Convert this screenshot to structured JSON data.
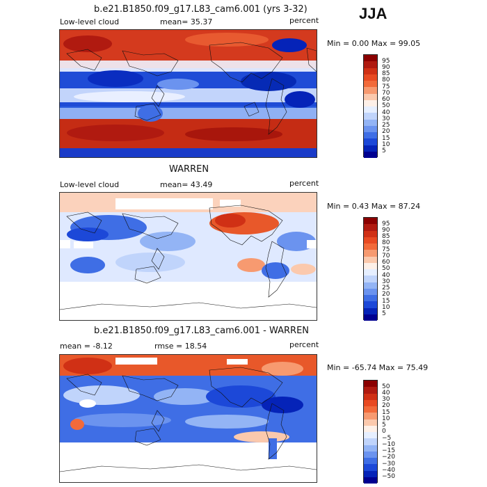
{
  "season": "JJA",
  "panels": [
    {
      "title": "b.e21.B1850.f09_g17.L83_cam6.001 (yrs 3-32)",
      "left_label": "Low-level cloud",
      "mid_label": "mean=  35.37",
      "right_label": "percent",
      "minmax": "Min =   0.00 Max =  99.05",
      "colorbar_ticks": [
        "95",
        "90",
        "85",
        "80",
        "75",
        "70",
        "60",
        "50",
        "40",
        "30",
        "25",
        "20",
        "15",
        "10",
        "5"
      ],
      "colorbar_colors": [
        "#8b0000",
        "#b01a10",
        "#d03015",
        "#e84a22",
        "#f26a3a",
        "#f79a70",
        "#fbc9ad",
        "#fdf0e8",
        "#e6efff",
        "#c0d4fb",
        "#93b4f5",
        "#6b93ef",
        "#3f6ee5",
        "#1c48d8",
        "#0523b8",
        "#000090"
      ]
    },
    {
      "title": "WARREN",
      "left_label": "Low-level cloud",
      "mid_label": "mean=  43.49",
      "right_label": "percent",
      "minmax": "Min =   0.43 Max =  87.24",
      "colorbar_ticks": [
        "95",
        "90",
        "85",
        "80",
        "75",
        "70",
        "60",
        "50",
        "40",
        "30",
        "25",
        "20",
        "15",
        "10",
        "5"
      ],
      "colorbar_colors": [
        "#8b0000",
        "#b01a10",
        "#d03015",
        "#e84a22",
        "#f26a3a",
        "#f79a70",
        "#fbc9ad",
        "#fdf0e8",
        "#e6efff",
        "#c0d4fb",
        "#93b4f5",
        "#6b93ef",
        "#3f6ee5",
        "#1c48d8",
        "#0523b8",
        "#000090"
      ]
    },
    {
      "title": "b.e21.B1850.f09_g17.L83_cam6.001 - WARREN",
      "left_label": "mean =  -8.12",
      "mid_label": "rmse =  18.54",
      "right_label": "percent",
      "minmax": "Min = -65.74 Max =  75.49",
      "colorbar_ticks": [
        "50",
        "40",
        "30",
        "20",
        "15",
        "10",
        "5",
        "0",
        "−5",
        "−10",
        "−15",
        "−20",
        "−30",
        "−40",
        "−50"
      ],
      "colorbar_colors": [
        "#8b0000",
        "#b01a10",
        "#d03015",
        "#e84a22",
        "#f26a3a",
        "#f79a70",
        "#fbc9ad",
        "#fdf0e8",
        "#e6efff",
        "#c0d4fb",
        "#93b4f5",
        "#6b93ef",
        "#3f6ee5",
        "#1c48d8",
        "#0523b8",
        "#000090"
      ]
    }
  ]
}
